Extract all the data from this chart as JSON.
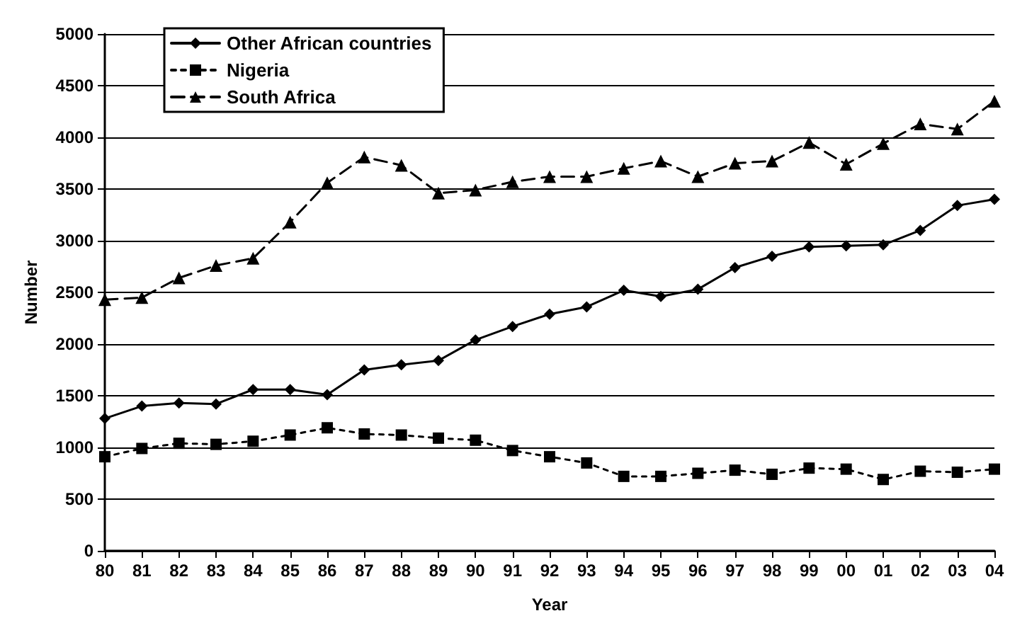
{
  "chart_data": {
    "type": "line",
    "xlabel": "Year",
    "ylabel": "Number",
    "categories": [
      "80",
      "81",
      "82",
      "83",
      "84",
      "85",
      "86",
      "87",
      "88",
      "89",
      "90",
      "91",
      "92",
      "93",
      "94",
      "95",
      "96",
      "97",
      "98",
      "99",
      "00",
      "01",
      "02",
      "03",
      "04"
    ],
    "series": [
      {
        "name": "Other African countries",
        "color": "#000000",
        "marker": "diamond",
        "line_style": "solid",
        "values": [
          1280,
          1400,
          1430,
          1420,
          1560,
          1560,
          1510,
          1750,
          1800,
          1840,
          2040,
          2170,
          2290,
          2360,
          2520,
          2460,
          2530,
          2740,
          2850,
          2940,
          2950,
          2960,
          3100,
          3340,
          3400
        ]
      },
      {
        "name": "Nigeria",
        "color": "#000000",
        "marker": "square",
        "line_style": "dotted",
        "values": [
          910,
          990,
          1040,
          1030,
          1060,
          1120,
          1190,
          1130,
          1120,
          1090,
          1070,
          970,
          910,
          850,
          720,
          720,
          750,
          780,
          740,
          800,
          790,
          690,
          770,
          760,
          790
        ]
      },
      {
        "name": "South Africa",
        "color": "#000000",
        "marker": "triangle",
        "line_style": "dashed",
        "values": [
          2430,
          2450,
          2640,
          2760,
          2830,
          3180,
          3560,
          3810,
          3730,
          3460,
          3490,
          3570,
          3620,
          3620,
          3700,
          3770,
          3620,
          3750,
          3770,
          3950,
          3740,
          3940,
          4130,
          4080,
          4350
        ]
      }
    ],
    "ylim": [
      0,
      5000
    ],
    "yticks": [
      0,
      500,
      1000,
      1500,
      2000,
      2500,
      3000,
      3500,
      4000,
      4500,
      5000
    ],
    "grid": "y",
    "legend": "top left"
  }
}
